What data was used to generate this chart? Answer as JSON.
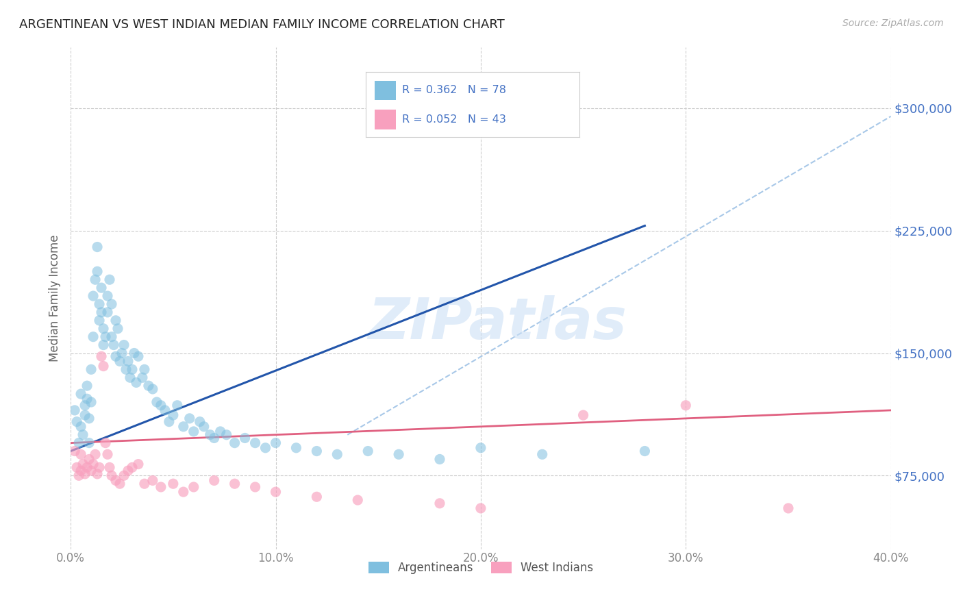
{
  "title": "ARGENTINEAN VS WEST INDIAN MEDIAN FAMILY INCOME CORRELATION CHART",
  "source": "Source: ZipAtlas.com",
  "ylabel": "Median Family Income",
  "xlim": [
    0.0,
    0.4
  ],
  "ylim": [
    30000,
    337500
  ],
  "yticks": [
    75000,
    150000,
    225000,
    300000
  ],
  "ytick_labels": [
    "$75,000",
    "$150,000",
    "$225,000",
    "$300,000"
  ],
  "xticks": [
    0.0,
    0.1,
    0.2,
    0.3,
    0.4
  ],
  "xtick_labels": [
    "0.0%",
    "10.0%",
    "20.0%",
    "30.0%",
    "40.0%"
  ],
  "background_color": "#ffffff",
  "grid_color": "#cccccc",
  "blue_scatter_color": "#7fbfdf",
  "pink_scatter_color": "#f8a0be",
  "blue_line_color": "#2255aa",
  "pink_line_color": "#e06080",
  "dashed_line_color": "#a8c8e8",
  "label_color": "#4472c4",
  "tick_label_color": "#4472c4",
  "xtick_color": "#888888",
  "argentinean_label": "Argentineans",
  "west_indian_label": "West Indians",
  "R_blue": 0.362,
  "N_blue": 78,
  "R_pink": 0.052,
  "N_pink": 43,
  "blue_trend_x": [
    0.0,
    0.28
  ],
  "blue_trend_y": [
    90000,
    228000
  ],
  "pink_trend_x": [
    0.0,
    0.4
  ],
  "pink_trend_y": [
    95000,
    115000
  ],
  "ref_line_x": [
    0.135,
    0.4
  ],
  "ref_line_y": [
    100000,
    295000
  ],
  "argentineans_x": [
    0.002,
    0.003,
    0.004,
    0.005,
    0.005,
    0.006,
    0.007,
    0.007,
    0.008,
    0.008,
    0.009,
    0.009,
    0.01,
    0.01,
    0.011,
    0.011,
    0.012,
    0.013,
    0.013,
    0.014,
    0.014,
    0.015,
    0.015,
    0.016,
    0.016,
    0.017,
    0.018,
    0.018,
    0.019,
    0.02,
    0.02,
    0.021,
    0.022,
    0.022,
    0.023,
    0.024,
    0.025,
    0.026,
    0.027,
    0.028,
    0.029,
    0.03,
    0.031,
    0.032,
    0.033,
    0.035,
    0.036,
    0.038,
    0.04,
    0.042,
    0.044,
    0.046,
    0.048,
    0.05,
    0.052,
    0.055,
    0.058,
    0.06,
    0.063,
    0.065,
    0.068,
    0.07,
    0.073,
    0.076,
    0.08,
    0.085,
    0.09,
    0.095,
    0.1,
    0.11,
    0.12,
    0.13,
    0.145,
    0.16,
    0.18,
    0.2,
    0.23,
    0.28
  ],
  "argentineans_y": [
    115000,
    108000,
    95000,
    125000,
    105000,
    100000,
    112000,
    118000,
    130000,
    122000,
    110000,
    95000,
    140000,
    120000,
    160000,
    185000,
    195000,
    215000,
    200000,
    180000,
    170000,
    175000,
    190000,
    165000,
    155000,
    160000,
    175000,
    185000,
    195000,
    180000,
    160000,
    155000,
    170000,
    148000,
    165000,
    145000,
    150000,
    155000,
    140000,
    145000,
    135000,
    140000,
    150000,
    132000,
    148000,
    135000,
    140000,
    130000,
    128000,
    120000,
    118000,
    115000,
    108000,
    112000,
    118000,
    105000,
    110000,
    102000,
    108000,
    105000,
    100000,
    98000,
    102000,
    100000,
    95000,
    98000,
    95000,
    92000,
    95000,
    92000,
    90000,
    88000,
    90000,
    88000,
    85000,
    92000,
    88000,
    90000
  ],
  "west_indians_x": [
    0.002,
    0.003,
    0.004,
    0.005,
    0.005,
    0.006,
    0.007,
    0.008,
    0.009,
    0.01,
    0.011,
    0.012,
    0.013,
    0.014,
    0.015,
    0.016,
    0.017,
    0.018,
    0.019,
    0.02,
    0.022,
    0.024,
    0.026,
    0.028,
    0.03,
    0.033,
    0.036,
    0.04,
    0.044,
    0.05,
    0.055,
    0.06,
    0.07,
    0.08,
    0.09,
    0.1,
    0.12,
    0.14,
    0.18,
    0.2,
    0.25,
    0.3,
    0.35
  ],
  "west_indians_y": [
    90000,
    80000,
    75000,
    88000,
    78000,
    82000,
    76000,
    80000,
    85000,
    78000,
    82000,
    88000,
    76000,
    80000,
    148000,
    142000,
    95000,
    88000,
    80000,
    75000,
    72000,
    70000,
    75000,
    78000,
    80000,
    82000,
    70000,
    72000,
    68000,
    70000,
    65000,
    68000,
    72000,
    70000,
    68000,
    65000,
    62000,
    60000,
    58000,
    55000,
    112000,
    118000,
    55000
  ]
}
